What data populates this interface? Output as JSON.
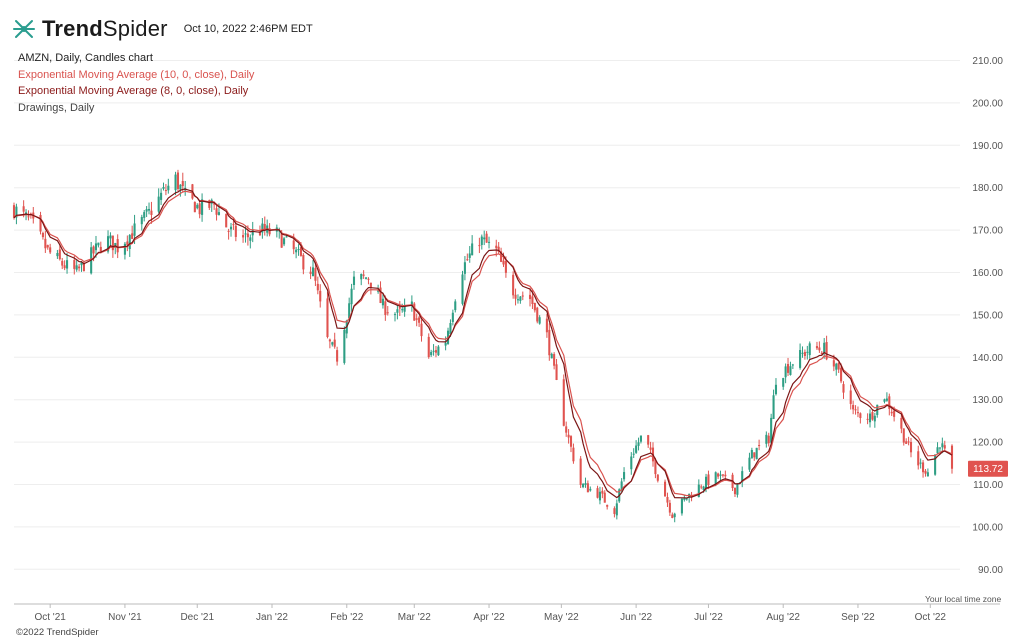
{
  "header": {
    "brand_bold": "Trend",
    "brand_light": "Spider",
    "timestamp": "Oct 10, 2022 2:46PM EDT"
  },
  "legend": {
    "line0": "AMZN, Daily, Candles chart",
    "line1": "Exponential Moving Average (10, 0, close), Daily",
    "line2": "Exponential Moving Average (8, 0, close), Daily",
    "line3": "Drawings, Daily"
  },
  "footer": {
    "copyright": "©2022 TrendSpider",
    "tz_note": "Your local time zone"
  },
  "chart_data": {
    "type": "candlestick",
    "symbol": "AMZN",
    "interval": "Daily",
    "ylim": [
      85,
      215
    ],
    "y_ticks": [
      "210.00",
      "200.00",
      "190.00",
      "180.00",
      "170.00",
      "160.00",
      "150.00",
      "140.00",
      "130.00",
      "120.00",
      "110.00",
      "100.00",
      "90.00"
    ],
    "x_tick_labels": [
      "Oct '21",
      "Nov '21",
      "Dec '21",
      "Jan '22",
      "Feb '22",
      "Mar '22",
      "Apr '22",
      "May '22",
      "Jun '22",
      "Jul '22",
      "Aug '22",
      "Sep '22",
      "Oct '22"
    ],
    "last_price": "113.72",
    "colors": {
      "up": "#2e9e84",
      "down": "#e0534f",
      "ema10": "#d9534f",
      "ema8": "#7a1515",
      "price_label_bg": "#e0534f",
      "grid": "#eeeeee"
    },
    "anchors": [
      {
        "date": "Sep 16 '21",
        "close": 175
      },
      {
        "date": "Sep 23 '21",
        "close": 172
      },
      {
        "date": "Sep 30 '21",
        "close": 165
      },
      {
        "date": "Oct 6 '21",
        "close": 162
      },
      {
        "date": "Oct 12 '21",
        "close": 160
      },
      {
        "date": "Oct 18 '21",
        "close": 164
      },
      {
        "date": "Oct 24 '21",
        "close": 168
      },
      {
        "date": "Oct 29 '21",
        "close": 166
      },
      {
        "date": "Nov 5 '21",
        "close": 170
      },
      {
        "date": "Nov 11 '21",
        "close": 174
      },
      {
        "date": "Nov 17 '21",
        "close": 179
      },
      {
        "date": "Nov 22 '21",
        "close": 182
      },
      {
        "date": "Nov 26 '21",
        "close": 178
      },
      {
        "date": "Dec 2 '21",
        "close": 175
      },
      {
        "date": "Dec 8 '21",
        "close": 176
      },
      {
        "date": "Dec 14 '21",
        "close": 170
      },
      {
        "date": "Dec 20 '21",
        "close": 168
      },
      {
        "date": "Dec 27 '21",
        "close": 170
      },
      {
        "date": "Jan 3 '22",
        "close": 169
      },
      {
        "date": "Jan 10 '22",
        "close": 165
      },
      {
        "date": "Jan 18 '22",
        "close": 160
      },
      {
        "date": "Jan 24 '22",
        "close": 144
      },
      {
        "date": "Jan 28 '22",
        "close": 140
      },
      {
        "date": "Feb 4 '22",
        "close": 158
      },
      {
        "date": "Feb 10 '22",
        "close": 159
      },
      {
        "date": "Feb 16 '22",
        "close": 152
      },
      {
        "date": "Feb 22 '22",
        "close": 150
      },
      {
        "date": "Feb 28 '22",
        "close": 152
      },
      {
        "date": "Mar 7 '22",
        "close": 140
      },
      {
        "date": "Mar 14 '22",
        "close": 144
      },
      {
        "date": "Mar 20 '22",
        "close": 160
      },
      {
        "date": "Mar 28 '22",
        "close": 168
      },
      {
        "date": "Apr 4 '22",
        "close": 165
      },
      {
        "date": "Apr 10 '22",
        "close": 156
      },
      {
        "date": "Apr 18 '22",
        "close": 154
      },
      {
        "date": "Apr 25 '22",
        "close": 145
      },
      {
        "date": "May 2 '22",
        "close": 125
      },
      {
        "date": "May 9 '22",
        "close": 110
      },
      {
        "date": "May 16 '22",
        "close": 108
      },
      {
        "date": "May 23 '22",
        "close": 104
      },
      {
        "date": "May 28 '22",
        "close": 115
      },
      {
        "date": "Jun 4 '22",
        "close": 122
      },
      {
        "date": "Jun 10 '22",
        "close": 112
      },
      {
        "date": "Jun 16 '22",
        "close": 103
      },
      {
        "date": "Jun 22 '22",
        "close": 107
      },
      {
        "date": "Jun 28 '22",
        "close": 110
      },
      {
        "date": "Jul 5 '22",
        "close": 112
      },
      {
        "date": "Jul 12 '22",
        "close": 109
      },
      {
        "date": "Jul 19 '22",
        "close": 117
      },
      {
        "date": "Jul 26 '22",
        "close": 121
      },
      {
        "date": "Jul 29 '22",
        "close": 135
      },
      {
        "date": "Aug 5 '22",
        "close": 139
      },
      {
        "date": "Aug 12 '22",
        "close": 142
      },
      {
        "date": "Aug 18 '22",
        "close": 142
      },
      {
        "date": "Aug 24 '22",
        "close": 136
      },
      {
        "date": "Aug 30 '22",
        "close": 127
      },
      {
        "date": "Sep 6 '22",
        "close": 126
      },
      {
        "date": "Sep 12 '22",
        "close": 131
      },
      {
        "date": "Sep 18 '22",
        "close": 124
      },
      {
        "date": "Sep 24 '22",
        "close": 116
      },
      {
        "date": "Sep 30 '22",
        "close": 113
      },
      {
        "date": "Oct 5 '22",
        "close": 120
      },
      {
        "date": "Oct 10 '22",
        "close": 113.72
      }
    ]
  }
}
